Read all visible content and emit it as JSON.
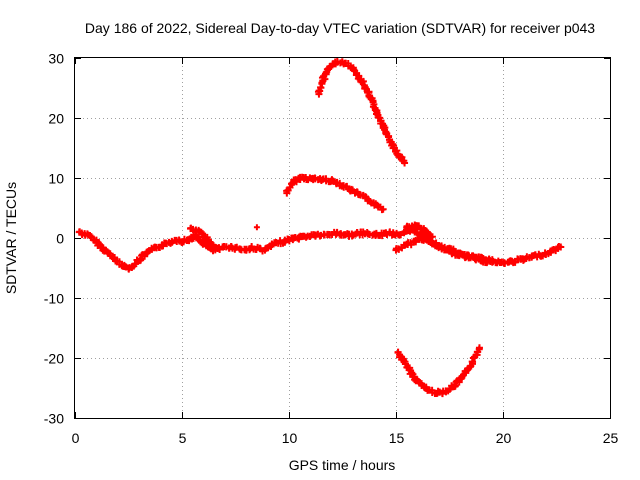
{
  "chart_data": {
    "type": "scatter",
    "title": "Day 186 of 2022, Sidereal Day-to-day VTEC variation (SDTVAR) for receiver p043",
    "xlabel": "GPS time / hours",
    "ylabel": "SDTVAR / TECUs",
    "xlim": [
      0,
      25
    ],
    "ylim": [
      -30,
      30
    ],
    "xticks": [
      0,
      5,
      10,
      15,
      20,
      25
    ],
    "yticks": [
      -30,
      -20,
      -10,
      0,
      10,
      20,
      30
    ],
    "grid": true,
    "marker": "plus",
    "color": "#ff0000",
    "series": [
      {
        "name": "baseline",
        "x": [
          0.2,
          0.5,
          0.8,
          1.1,
          1.4,
          1.7,
          2.0,
          2.3,
          2.6,
          2.9,
          3.2,
          3.5,
          3.8,
          4.1,
          4.4,
          4.7,
          5.0,
          5.3,
          5.6,
          5.9,
          6.2,
          6.5,
          6.8,
          7.1,
          7.4,
          7.7,
          8.0,
          8.3,
          8.6,
          8.9,
          9.2,
          9.5,
          9.8,
          10.1,
          10.4,
          10.7,
          11.0,
          11.3,
          11.6,
          11.9,
          12.2,
          12.5,
          12.8,
          13.1,
          13.4,
          13.7,
          14.0,
          14.3,
          14.6,
          14.9,
          15.2,
          15.5,
          15.8,
          16.1,
          16.4,
          16.7,
          17.0,
          17.3,
          17.6,
          17.9,
          18.2,
          18.5,
          18.8,
          19.1,
          19.4,
          19.7,
          20.0,
          20.3,
          20.6,
          20.9,
          21.2,
          21.5,
          21.8,
          22.1,
          22.4,
          22.7
        ],
        "y": [
          1.0,
          0.6,
          0.0,
          -1.0,
          -2.0,
          -3.0,
          -4.0,
          -4.8,
          -5.0,
          -4.0,
          -3.0,
          -2.2,
          -1.6,
          -1.2,
          -0.8,
          -0.3,
          -0.5,
          -0.3,
          0.3,
          -0.5,
          -1.5,
          -2.0,
          -1.8,
          -1.4,
          -1.6,
          -1.8,
          -2.0,
          -1.6,
          -1.8,
          -2.0,
          -1.2,
          -0.8,
          -0.5,
          -0.2,
          0.0,
          0.2,
          0.4,
          0.5,
          0.4,
          0.6,
          0.8,
          0.6,
          0.5,
          0.6,
          0.8,
          0.7,
          0.5,
          0.6,
          0.8,
          0.7,
          0.6,
          1.0,
          1.2,
          0.8,
          0.0,
          -0.8,
          -1.5,
          -1.8,
          -2.0,
          -2.5,
          -3.0,
          -3.2,
          -3.5,
          -3.8,
          -4.0,
          -4.0,
          -4.2,
          -4.0,
          -3.8,
          -3.6,
          -3.3,
          -3.0,
          -2.8,
          -2.5,
          -2.0,
          -1.5
        ]
      },
      {
        "name": "split-lower",
        "x": [
          15.0,
          15.3,
          15.6,
          15.9,
          16.2,
          16.5,
          16.8,
          17.1,
          17.4,
          17.7,
          18.0,
          18.3,
          18.6,
          18.9,
          19.2,
          19.5
        ],
        "y": [
          -2.0,
          -1.5,
          -1.0,
          -0.5,
          0.0,
          -0.5,
          -1.0,
          -1.5,
          -2.0,
          -2.5,
          -2.8,
          -3.0,
          -3.2,
          -3.4,
          -3.5,
          -3.6
        ]
      },
      {
        "name": "split-upper",
        "x": [
          15.5,
          15.8,
          16.1,
          16.4,
          16.7
        ],
        "y": [
          1.8,
          2.0,
          1.8,
          1.0,
          0.2
        ]
      },
      {
        "name": "bump-6h",
        "x": [
          5.4,
          5.7,
          6.0,
          6.3,
          6.6
        ],
        "y": [
          1.6,
          1.2,
          0.5,
          -0.8,
          -1.6
        ]
      },
      {
        "name": "isolated",
        "x": [
          8.5
        ],
        "y": [
          1.8
        ]
      },
      {
        "name": "arc-10",
        "x": [
          9.9,
          10.1,
          10.3,
          10.5,
          10.8,
          11.1,
          11.4,
          11.7,
          12.0,
          12.3,
          12.6,
          12.9,
          13.2,
          13.5,
          13.8,
          14.1,
          14.4
        ],
        "y": [
          7.5,
          8.8,
          9.6,
          10.0,
          10.0,
          9.8,
          9.8,
          9.7,
          9.5,
          9.2,
          8.6,
          8.0,
          7.4,
          6.8,
          6.2,
          5.5,
          4.8
        ]
      },
      {
        "name": "arc-upper",
        "x": [
          11.4,
          11.6,
          11.8,
          12.0,
          12.2,
          12.5,
          12.8,
          13.1,
          13.4,
          13.7,
          14.0,
          14.3,
          14.6,
          14.9,
          15.2,
          15.4
        ],
        "y": [
          24.0,
          26.5,
          28.0,
          28.8,
          29.2,
          29.3,
          28.8,
          27.8,
          26.2,
          24.2,
          22.0,
          19.5,
          17.0,
          15.0,
          13.5,
          12.5
        ]
      },
      {
        "name": "arc-lower",
        "x": [
          15.1,
          15.4,
          15.7,
          16.0,
          16.3,
          16.6,
          16.9,
          17.2,
          17.5,
          17.8,
          18.1,
          18.4,
          18.7,
          18.9
        ],
        "y": [
          -19.0,
          -20.8,
          -22.4,
          -23.8,
          -24.8,
          -25.5,
          -25.8,
          -25.7,
          -25.2,
          -24.4,
          -23.3,
          -21.8,
          -20.0,
          -18.3
        ]
      }
    ]
  }
}
